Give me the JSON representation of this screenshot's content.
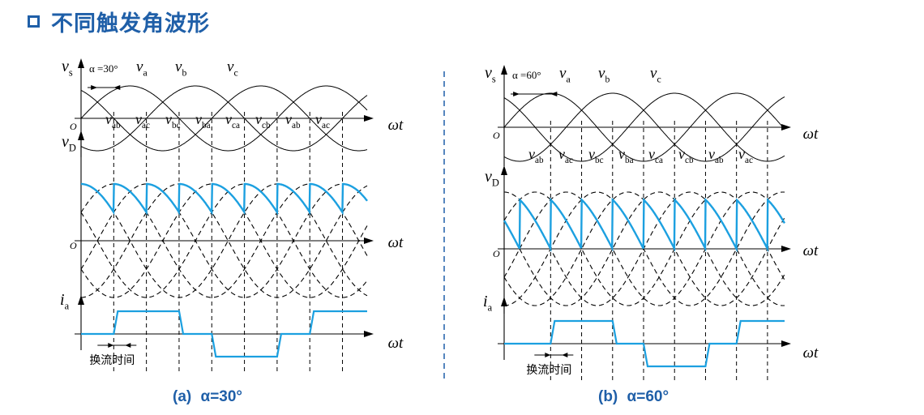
{
  "title": "不同触发角波形",
  "colors": {
    "accent": "#1f5fa8",
    "trace": "#1ca0e0",
    "line": "#000000"
  },
  "panels": [
    {
      "id": "a",
      "alpha_deg": 30,
      "alpha_label": "α =30°",
      "caption_prefix": "(a)",
      "caption_value": "α=30°",
      "commutation_label": "换流时间",
      "vs": {
        "v": "v",
        "sub": "s"
      },
      "vD": {
        "v": "v",
        "sub": "D"
      },
      "ia": {
        "v": "i",
        "sub": "a"
      },
      "origin": "O",
      "omega_t": "ωt",
      "phase_labels": [
        {
          "v": "v",
          "sub": "a"
        },
        {
          "v": "v",
          "sub": "b"
        },
        {
          "v": "v",
          "sub": "c"
        }
      ],
      "line_labels": [
        {
          "v": "v",
          "sub": "ab"
        },
        {
          "v": "v",
          "sub": "ac"
        },
        {
          "v": "v",
          "sub": "bc"
        },
        {
          "v": "v",
          "sub": "ba"
        },
        {
          "v": "v",
          "sub": "ca"
        },
        {
          "v": "v",
          "sub": "cb"
        },
        {
          "v": "v",
          "sub": "ab"
        },
        {
          "v": "v",
          "sub": "ac"
        }
      ]
    },
    {
      "id": "b",
      "alpha_deg": 60,
      "alpha_label": "α =60°",
      "caption_prefix": "(b)",
      "caption_value": "α=60°",
      "commutation_label": "换流时间",
      "vs": {
        "v": "v",
        "sub": "s"
      },
      "vD": {
        "v": "v",
        "sub": "D"
      },
      "ia": {
        "v": "i",
        "sub": "a"
      },
      "origin": "O",
      "omega_t": "ωt",
      "phase_labels": [
        {
          "v": "v",
          "sub": "a"
        },
        {
          "v": "v",
          "sub": "b"
        },
        {
          "v": "v",
          "sub": "c"
        }
      ],
      "line_labels": [
        {
          "v": "v",
          "sub": "ab"
        },
        {
          "v": "v",
          "sub": "ac"
        },
        {
          "v": "v",
          "sub": "bc"
        },
        {
          "v": "v",
          "sub": "ba"
        },
        {
          "v": "v",
          "sub": "ca"
        },
        {
          "v": "v",
          "sub": "cb"
        },
        {
          "v": "v",
          "sub": "ab"
        },
        {
          "v": "v",
          "sub": "ac"
        }
      ]
    }
  ]
}
